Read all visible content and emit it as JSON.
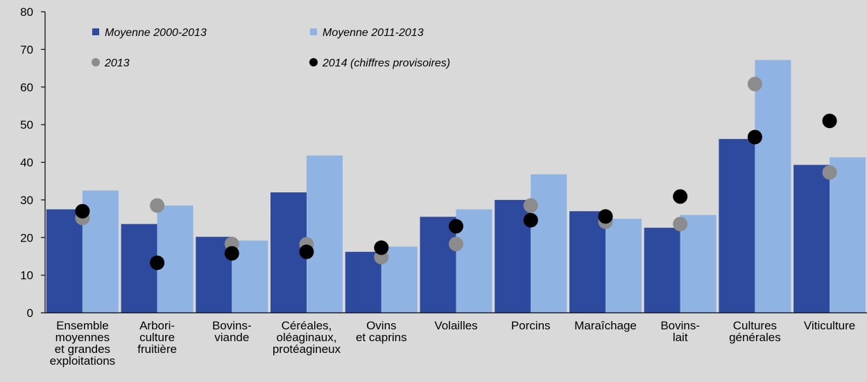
{
  "chart_data": {
    "type": "bar",
    "categories": [
      [
        "Ensemble",
        "moyennes",
        "et grandes",
        "exploitations"
      ],
      [
        "Arbori-",
        "culture",
        "fruitière"
      ],
      [
        "Bovins-",
        "viande"
      ],
      [
        "Céréales,",
        "oléaginaux,",
        "protéagineux"
      ],
      [
        "Ovins",
        "et caprins"
      ],
      [
        "Volailles"
      ],
      [
        "Porcins"
      ],
      [
        "Maraîchage"
      ],
      [
        "Bovins-",
        "lait"
      ],
      [
        "Cultures",
        "générales"
      ],
      [
        "Viticulture"
      ]
    ],
    "ylim": [
      0,
      80
    ],
    "yticks": [
      0,
      10,
      20,
      30,
      40,
      50,
      60,
      70,
      80
    ],
    "grid": false,
    "legend_position": "top-left",
    "series": [
      {
        "name": "Moyenne 2000-2013",
        "kind": "bar",
        "color": "#2e4a9e",
        "values": [
          27.5,
          23.6,
          20.2,
          32,
          16.2,
          25.5,
          30,
          27,
          22.6,
          46.2,
          39.3
        ]
      },
      {
        "name": "Moyenne 2011-2013",
        "kind": "bar",
        "color": "#8fb4e3",
        "values": [
          32.5,
          28.5,
          19.2,
          41.8,
          17.6,
          27.5,
          36.8,
          25,
          26,
          67.2,
          41.3
        ]
      },
      {
        "name": "2013",
        "kind": "dot",
        "color": "#8c8c8c",
        "values": [
          25.2,
          28.5,
          18.3,
          18.2,
          14.8,
          18.3,
          28.5,
          24.2,
          23.6,
          60.8,
          37.3
        ]
      },
      {
        "name": "2014 (chiffres provisoires)",
        "kind": "dot",
        "color": "#000000",
        "values": [
          27,
          13.3,
          15.8,
          16.2,
          17.3,
          23,
          24.6,
          25.6,
          30.9,
          46.7,
          51
        ]
      }
    ]
  }
}
